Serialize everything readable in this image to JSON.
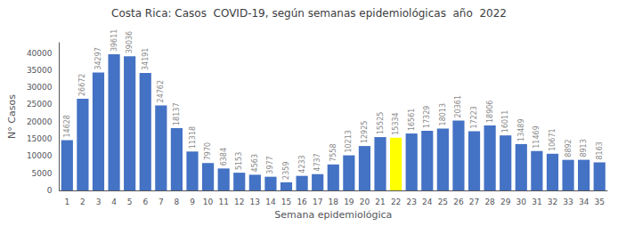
{
  "chart_data": {
    "type": "bar",
    "title": "Costa Rica: Casos  COVID-19, según semanas epidemiológicas  año  2022",
    "x_label": "Semana epidemiológica",
    "y_label": "N° Casos",
    "categories": [
      "1",
      "2",
      "3",
      "4",
      "5",
      "6",
      "7",
      "8",
      "9",
      "10",
      "11",
      "12",
      "13",
      "14",
      "15",
      "16",
      "17",
      "18",
      "19",
      "20",
      "21",
      "22",
      "23",
      "24",
      "25",
      "26",
      "27",
      "28",
      "29",
      "30",
      "31",
      "32",
      "33",
      "34",
      "35"
    ],
    "values": [
      14628,
      26672,
      34297,
      39611,
      39036,
      34191,
      24762,
      18137,
      11318,
      7970,
      6384,
      5153,
      4563,
      3977,
      2359,
      4233,
      4737,
      7558,
      10213,
      12925,
      15525,
      15334,
      16561,
      17329,
      18013,
      20361,
      17223,
      18906,
      16011,
      13489,
      11469,
      10671,
      8892,
      8913,
      8163
    ],
    "colors": [
      "#4472C4",
      "#4472C4",
      "#4472C4",
      "#4472C4",
      "#4472C4",
      "#4472C4",
      "#4472C4",
      "#4472C4",
      "#4472C4",
      "#4472C4",
      "#4472C4",
      "#4472C4",
      "#4472C4",
      "#4472C4",
      "#4472C4",
      "#4472C4",
      "#4472C4",
      "#4472C4",
      "#4472C4",
      "#4472C4",
      "#4472C4",
      "#FFFF00",
      "#4472C4",
      "#4472C4",
      "#4472C4",
      "#4472C4",
      "#4472C4",
      "#4472C4",
      "#4472C4",
      "#4472C4",
      "#4472C4",
      "#4472C4",
      "#4472C4",
      "#4472C4",
      "#4472C4"
    ],
    "ylim": [
      0,
      43000
    ],
    "yticks": [
      0,
      5000,
      10000,
      15000,
      20000,
      25000,
      30000,
      35000,
      40000
    ],
    "data_labels": true,
    "grid": false
  }
}
